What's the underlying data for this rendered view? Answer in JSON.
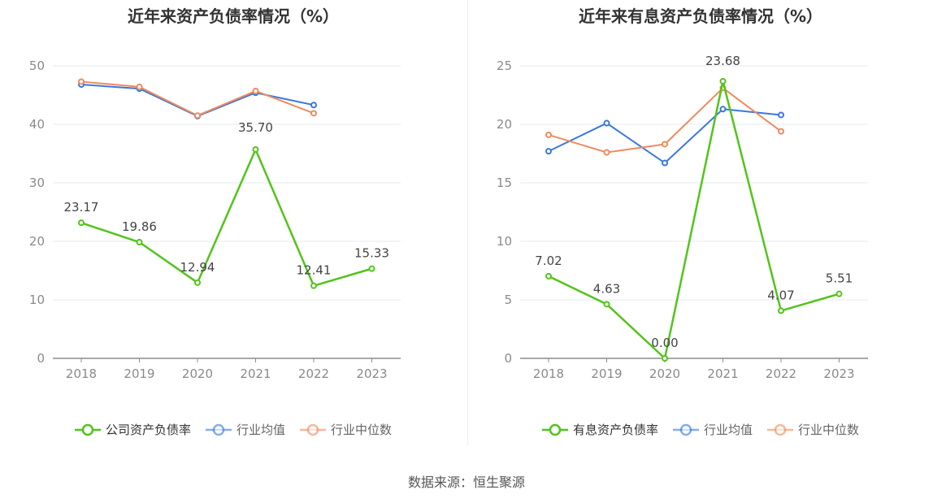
{
  "source_text": "数据来源：恒生聚源",
  "colors": {
    "company": "#52c41a",
    "industry_avg": "#3a78db",
    "industry_median": "#f08a5d"
  },
  "chart_data": [
    {
      "type": "line",
      "title": "近年来资产负债率情况（%）",
      "categories": [
        "2018",
        "2019",
        "2020",
        "2021",
        "2022",
        "2023"
      ],
      "ylim": [
        0,
        50
      ],
      "yticks": [
        0,
        10,
        20,
        30,
        40,
        50
      ],
      "grid": true,
      "legend_position": "bottom",
      "series": [
        {
          "name": "公司资产负债率",
          "color": "#52c41a",
          "values": [
            23.17,
            19.86,
            12.94,
            35.7,
            12.41,
            15.33
          ],
          "labels": [
            "23.17",
            "19.86",
            "12.94",
            "35.70",
            "12.41",
            "15.33"
          ]
        },
        {
          "name": "行业均值",
          "color": "#3a78db",
          "values": [
            46.8,
            46.1,
            41.4,
            45.4,
            43.3,
            null
          ]
        },
        {
          "name": "行业中位数",
          "color": "#f08a5d",
          "values": [
            47.3,
            46.4,
            41.5,
            45.7,
            41.9,
            null
          ]
        }
      ]
    },
    {
      "type": "line",
      "title": "近年来有息资产负债率情况（%）",
      "categories": [
        "2018",
        "2019",
        "2020",
        "2021",
        "2022",
        "2023"
      ],
      "ylim": [
        0,
        25
      ],
      "yticks": [
        0,
        5,
        10,
        15,
        20,
        25
      ],
      "grid": true,
      "legend_position": "bottom",
      "series": [
        {
          "name": "有息资产负债率",
          "color": "#52c41a",
          "values": [
            7.02,
            4.63,
            0.0,
            23.68,
            4.07,
            5.51
          ],
          "labels": [
            "7.02",
            "4.63",
            "0.00",
            "23.68",
            "4.07",
            "5.51"
          ]
        },
        {
          "name": "行业均值",
          "color": "#3a78db",
          "values": [
            17.7,
            20.1,
            16.7,
            21.3,
            20.8,
            null
          ]
        },
        {
          "name": "行业中位数",
          "color": "#f08a5d",
          "values": [
            19.1,
            17.6,
            18.3,
            23.1,
            19.4,
            null
          ]
        }
      ]
    }
  ]
}
